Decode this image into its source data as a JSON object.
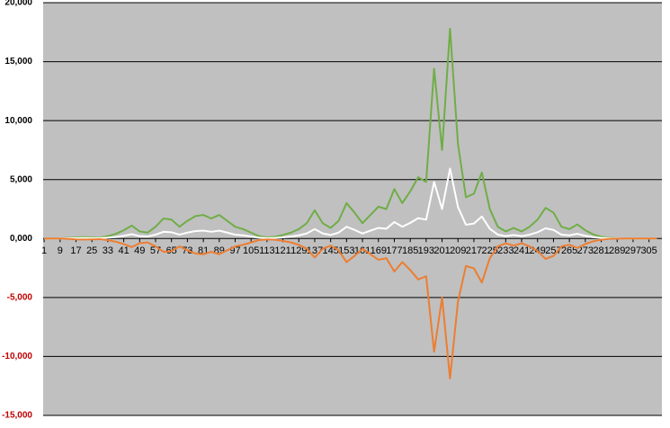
{
  "chart_data": {
    "type": "line",
    "x": [
      1,
      5,
      9,
      13,
      17,
      21,
      25,
      29,
      33,
      37,
      41,
      45,
      49,
      53,
      57,
      61,
      65,
      69,
      73,
      77,
      81,
      85,
      89,
      93,
      97,
      101,
      105,
      109,
      113,
      117,
      121,
      125,
      129,
      133,
      137,
      141,
      145,
      149,
      153,
      157,
      161,
      165,
      169,
      173,
      177,
      181,
      185,
      189,
      193,
      197,
      201,
      205,
      209,
      213,
      217,
      221,
      225,
      229,
      233,
      237,
      241,
      245,
      249,
      253,
      257,
      261,
      265,
      269,
      273,
      277,
      281,
      285,
      289,
      293,
      297,
      301,
      305,
      309
    ],
    "series": [
      {
        "color": "#70ad47",
        "values": [
          0,
          0,
          0,
          50,
          100,
          120,
          100,
          80,
          200,
          400,
          700,
          1100,
          600,
          500,
          1000,
          1700,
          1600,
          1000,
          1500,
          1900,
          2000,
          1700,
          2000,
          1500,
          1000,
          800,
          500,
          200,
          100,
          150,
          300,
          500,
          800,
          1300,
          2400,
          1300,
          900,
          1500,
          3000,
          2200,
          1300,
          2000,
          2700,
          2500,
          4200,
          3000,
          4000,
          5200,
          4800,
          14400,
          7500,
          17800,
          8000,
          3500,
          3800,
          5600,
          2500,
          1000,
          600,
          900,
          600,
          1000,
          1600,
          2600,
          2200,
          1000,
          800,
          1200,
          700,
          350,
          150,
          50,
          20,
          0,
          0,
          0,
          0,
          0
        ]
      },
      {
        "color": "#ffffff",
        "values": [
          0,
          0,
          0,
          20,
          30,
          40,
          30,
          30,
          70,
          130,
          230,
          370,
          200,
          170,
          330,
          570,
          530,
          330,
          500,
          630,
          670,
          570,
          670,
          500,
          330,
          270,
          170,
          70,
          30,
          50,
          100,
          170,
          270,
          430,
          800,
          430,
          300,
          500,
          1000,
          730,
          430,
          670,
          900,
          830,
          1400,
          1000,
          1330,
          1730,
          1600,
          4800,
          2500,
          5930,
          2670,
          1170,
          1270,
          1870,
          830,
          330,
          200,
          300,
          200,
          330,
          530,
          870,
          730,
          330,
          270,
          400,
          230,
          120,
          50,
          20,
          10,
          0,
          0,
          0,
          0,
          0
        ]
      },
      {
        "color": "#ed7d31",
        "values": [
          0,
          0,
          0,
          -30,
          -70,
          -80,
          -70,
          -50,
          -130,
          -270,
          -470,
          -730,
          -400,
          -330,
          -670,
          -1130,
          -1070,
          -670,
          -1000,
          -1270,
          -1330,
          -1130,
          -1330,
          -1000,
          -670,
          -530,
          -330,
          -130,
          -70,
          -100,
          -200,
          -330,
          -530,
          -870,
          -1600,
          -870,
          -600,
          -1000,
          -2000,
          -1470,
          -870,
          -1330,
          -1800,
          -1670,
          -2800,
          -2000,
          -2670,
          -3470,
          -3200,
          -9600,
          -5000,
          -11870,
          -5330,
          -2330,
          -2530,
          -3730,
          -1670,
          -670,
          -400,
          -600,
          -400,
          -670,
          -1070,
          -1730,
          -1470,
          -670,
          -530,
          -800,
          -470,
          -230,
          -100,
          -30,
          -10,
          0,
          0,
          0,
          0,
          0
        ]
      }
    ],
    "xlim": [
      0.5,
      311.5
    ],
    "xticks": [
      1,
      9,
      17,
      25,
      33,
      41,
      49,
      57,
      65,
      73,
      81,
      89,
      97,
      105,
      113,
      121,
      129,
      137,
      145,
      153,
      161,
      169,
      177,
      185,
      193,
      201,
      209,
      217,
      225,
      233,
      241,
      249,
      257,
      265,
      273,
      281,
      289,
      297,
      305
    ],
    "ylim": [
      -15000,
      20000
    ],
    "yticks": [
      {
        "value": -15000,
        "label": "-15,000"
      },
      {
        "value": -10000,
        "label": "-10,000"
      },
      {
        "value": -5000,
        "label": "-5,000"
      },
      {
        "value": 0,
        "label": "0,000"
      },
      {
        "value": 5000,
        "label": "5,000"
      },
      {
        "value": 10000,
        "label": "10,000"
      },
      {
        "value": 15000,
        "label": "15,000"
      },
      {
        "value": 20000,
        "label": "20,000"
      }
    ],
    "negative_tick_color": "#c00000",
    "grid": true,
    "background": "#c0c0c0"
  }
}
